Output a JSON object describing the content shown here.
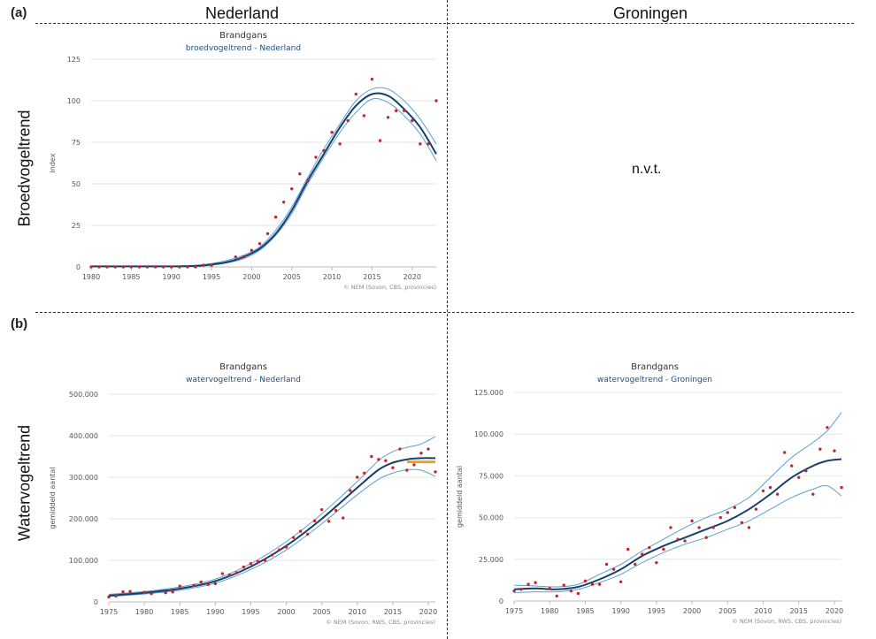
{
  "labels": {
    "panel_a": "(a)",
    "panel_b": "(b)",
    "col_nl": "Nederland",
    "col_gr": "Groningen",
    "row_breed": "Broedvogeltrend",
    "row_water": "Watervogeltrend",
    "not_applicable": "n.v.t."
  },
  "colors": {
    "trend": "#173f6a",
    "band": "#5a9fd4",
    "points": "#c0282d",
    "highlight": "#f0a020",
    "grid": "#e6e6e6",
    "subtitle": "#1f4d7a"
  },
  "chart_data": [
    {
      "id": "breed_nl",
      "type": "line",
      "title": "Brandgans",
      "subtitle": "broedvogeltrend - Nederland",
      "ylabel": "index",
      "source": "© NEM (Sovon, CBS, provincies)",
      "xlim": [
        1980,
        2023
      ],
      "ylim": [
        0,
        125
      ],
      "xticks": [
        "1980",
        "1985",
        "1990",
        "1995",
        "2000",
        "2005",
        "2010",
        "2015",
        "2020"
      ],
      "yticks": [
        "0",
        "25",
        "50",
        "75",
        "100",
        "125"
      ],
      "trend": [
        [
          1980,
          0.3
        ],
        [
          1985,
          0.3
        ],
        [
          1990,
          0.3
        ],
        [
          1993,
          0.6
        ],
        [
          1995,
          1.5
        ],
        [
          1997,
          3
        ],
        [
          1999,
          6
        ],
        [
          2001,
          11
        ],
        [
          2003,
          20
        ],
        [
          2005,
          34
        ],
        [
          2007,
          52
        ],
        [
          2009,
          68
        ],
        [
          2011,
          84
        ],
        [
          2013,
          97
        ],
        [
          2015,
          104
        ],
        [
          2017,
          103
        ],
        [
          2019,
          95
        ],
        [
          2021,
          84
        ],
        [
          2023,
          68
        ]
      ],
      "upper": [
        [
          1980,
          0.5
        ],
        [
          1990,
          0.5
        ],
        [
          1993,
          1
        ],
        [
          1995,
          2
        ],
        [
          1997,
          4
        ],
        [
          1999,
          7
        ],
        [
          2001,
          12
        ],
        [
          2003,
          22
        ],
        [
          2005,
          36
        ],
        [
          2007,
          54
        ],
        [
          2009,
          71
        ],
        [
          2011,
          86
        ],
        [
          2013,
          100
        ],
        [
          2015,
          107
        ],
        [
          2017,
          107
        ],
        [
          2019,
          100
        ],
        [
          2021,
          89
        ],
        [
          2023,
          74
        ]
      ],
      "lower": [
        [
          1980,
          0.1
        ],
        [
          1990,
          0.1
        ],
        [
          1993,
          0.3
        ],
        [
          1995,
          1
        ],
        [
          1997,
          2.5
        ],
        [
          1999,
          5
        ],
        [
          2001,
          10
        ],
        [
          2003,
          19
        ],
        [
          2005,
          32
        ],
        [
          2007,
          50
        ],
        [
          2009,
          66
        ],
        [
          2011,
          81
        ],
        [
          2013,
          93
        ],
        [
          2015,
          101
        ],
        [
          2017,
          99
        ],
        [
          2019,
          91
        ],
        [
          2021,
          80
        ],
        [
          2023,
          64
        ]
      ],
      "points": [
        [
          1980,
          0
        ],
        [
          1981,
          0
        ],
        [
          1982,
          0
        ],
        [
          1983,
          0
        ],
        [
          1984,
          0
        ],
        [
          1985,
          0
        ],
        [
          1986,
          0
        ],
        [
          1987,
          0
        ],
        [
          1988,
          0
        ],
        [
          1989,
          0
        ],
        [
          1990,
          0
        ],
        [
          1991,
          0
        ],
        [
          1992,
          0
        ],
        [
          1993,
          0
        ],
        [
          1994,
          1
        ],
        [
          1995,
          1
        ],
        [
          1998,
          6
        ],
        [
          1999,
          6
        ],
        [
          2000,
          10
        ],
        [
          2001,
          14
        ],
        [
          2002,
          20
        ],
        [
          2003,
          30
        ],
        [
          2004,
          39
        ],
        [
          2005,
          47
        ],
        [
          2006,
          56
        ],
        [
          2007,
          52
        ],
        [
          2008,
          66
        ],
        [
          2009,
          70
        ],
        [
          2010,
          81
        ],
        [
          2011,
          74
        ],
        [
          2012,
          88
        ],
        [
          2013,
          104
        ],
        [
          2014,
          91
        ],
        [
          2015,
          113
        ],
        [
          2016,
          76
        ],
        [
          2017,
          90
        ],
        [
          2018,
          94
        ],
        [
          2019,
          94
        ],
        [
          2020,
          88
        ],
        [
          2021,
          74
        ],
        [
          2022,
          74
        ],
        [
          2023,
          100
        ]
      ]
    },
    {
      "id": "water_nl",
      "type": "line",
      "title": "Brandgans",
      "subtitle": "watervogeltrend - Nederland",
      "ylabel": "gemiddeld aantal",
      "source": "© NEM (Sovon, RWS, CBS, provincies)",
      "xlim": [
        1975,
        2021
      ],
      "ylim": [
        0,
        500000
      ],
      "xticks": [
        "1975",
        "1980",
        "1985",
        "1990",
        "1995",
        "2000",
        "2005",
        "2010",
        "2015",
        "2020"
      ],
      "yticks": [
        "0",
        "100.000",
        "200.000",
        "300.000",
        "400.000",
        "500.000"
      ],
      "trend": [
        [
          1975,
          15000
        ],
        [
          1980,
          22000
        ],
        [
          1985,
          32000
        ],
        [
          1990,
          50000
        ],
        [
          1995,
          85000
        ],
        [
          2000,
          135000
        ],
        [
          2005,
          200000
        ],
        [
          2010,
          275000
        ],
        [
          2013,
          318000
        ],
        [
          2015,
          335000
        ],
        [
          2017,
          343000
        ],
        [
          2019,
          346000
        ],
        [
          2021,
          346000
        ]
      ],
      "upper": [
        [
          1975,
          18000
        ],
        [
          1980,
          25000
        ],
        [
          1985,
          36000
        ],
        [
          1990,
          55000
        ],
        [
          1995,
          92000
        ],
        [
          2000,
          145000
        ],
        [
          2005,
          212000
        ],
        [
          2010,
          290000
        ],
        [
          2013,
          340000
        ],
        [
          2015,
          362000
        ],
        [
          2017,
          372000
        ],
        [
          2019,
          380000
        ],
        [
          2021,
          398000
        ]
      ],
      "lower": [
        [
          1975,
          13000
        ],
        [
          1980,
          19000
        ],
        [
          1985,
          28000
        ],
        [
          1990,
          45000
        ],
        [
          1995,
          78000
        ],
        [
          2000,
          125000
        ],
        [
          2005,
          188000
        ],
        [
          2010,
          258000
        ],
        [
          2013,
          295000
        ],
        [
          2015,
          310000
        ],
        [
          2017,
          318000
        ],
        [
          2019,
          317000
        ],
        [
          2021,
          302000
        ]
      ],
      "highlight": [
        [
          2017,
          337000
        ],
        [
          2021,
          337000
        ]
      ],
      "points": [
        [
          1975,
          12000
        ],
        [
          1976,
          14000
        ],
        [
          1977,
          24000
        ],
        [
          1978,
          25000
        ],
        [
          1980,
          23000
        ],
        [
          1981,
          20000
        ],
        [
          1983,
          22000
        ],
        [
          1984,
          24000
        ],
        [
          1985,
          38000
        ],
        [
          1987,
          40000
        ],
        [
          1988,
          48000
        ],
        [
          1989,
          42000
        ],
        [
          1990,
          44000
        ],
        [
          1991,
          68000
        ],
        [
          1992,
          65000
        ],
        [
          1993,
          70000
        ],
        [
          1994,
          84000
        ],
        [
          1995,
          92000
        ],
        [
          1996,
          97000
        ],
        [
          1997,
          100000
        ],
        [
          1998,
          113000
        ],
        [
          1999,
          125000
        ],
        [
          2000,
          132000
        ],
        [
          2001,
          155000
        ],
        [
          2002,
          170000
        ],
        [
          2003,
          163000
        ],
        [
          2004,
          195000
        ],
        [
          2005,
          222000
        ],
        [
          2006,
          194000
        ],
        [
          2007,
          220000
        ],
        [
          2008,
          202000
        ],
        [
          2009,
          268000
        ],
        [
          2010,
          300000
        ],
        [
          2011,
          310000
        ],
        [
          2012,
          350000
        ],
        [
          2013,
          343000
        ],
        [
          2014,
          340000
        ],
        [
          2015,
          323000
        ],
        [
          2016,
          368000
        ],
        [
          2017,
          317000
        ],
        [
          2018,
          330000
        ],
        [
          2019,
          358000
        ],
        [
          2020,
          368000
        ],
        [
          2021,
          313000
        ]
      ]
    },
    {
      "id": "water_gr",
      "type": "line",
      "title": "Brandgans",
      "subtitle": "watervogeltrend - Groningen",
      "ylabel": "gemiddeld aantal",
      "source": "© NEM (Sovon, RWS, CBS, provincies)",
      "xlim": [
        1975,
        2021
      ],
      "ylim": [
        0,
        125000
      ],
      "xticks": [
        "1975",
        "1980",
        "1985",
        "1990",
        "1995",
        "2000",
        "2005",
        "2010",
        "2015",
        "2020"
      ],
      "yticks": [
        "0",
        "25.000",
        "50.000",
        "75.000",
        "100.000",
        "125.000"
      ],
      "trend": [
        [
          1975,
          7000
        ],
        [
          1978,
          7500
        ],
        [
          1981,
          7000
        ],
        [
          1984,
          8500
        ],
        [
          1987,
          13000
        ],
        [
          1990,
          19000
        ],
        [
          1993,
          27000
        ],
        [
          1996,
          33000
        ],
        [
          1999,
          38000
        ],
        [
          2002,
          43000
        ],
        [
          2005,
          48000
        ],
        [
          2008,
          55000
        ],
        [
          2011,
          64000
        ],
        [
          2014,
          74000
        ],
        [
          2017,
          81000
        ],
        [
          2019,
          84000
        ],
        [
          2021,
          85000
        ]
      ],
      "upper": [
        [
          1975,
          9500
        ],
        [
          1978,
          9000
        ],
        [
          1981,
          8500
        ],
        [
          1984,
          10000
        ],
        [
          1987,
          16000
        ],
        [
          1990,
          22000
        ],
        [
          1993,
          30000
        ],
        [
          1996,
          37000
        ],
        [
          1999,
          44000
        ],
        [
          2002,
          50000
        ],
        [
          2005,
          55000
        ],
        [
          2008,
          62000
        ],
        [
          2011,
          74000
        ],
        [
          2014,
          86000
        ],
        [
          2017,
          95000
        ],
        [
          2019,
          102000
        ],
        [
          2021,
          113000
        ]
      ],
      "lower": [
        [
          1975,
          5000
        ],
        [
          1978,
          5500
        ],
        [
          1981,
          5500
        ],
        [
          1984,
          7000
        ],
        [
          1987,
          11000
        ],
        [
          1990,
          16000
        ],
        [
          1993,
          23000
        ],
        [
          1996,
          29000
        ],
        [
          1999,
          34000
        ],
        [
          2002,
          38000
        ],
        [
          2005,
          43000
        ],
        [
          2008,
          48000
        ],
        [
          2011,
          55000
        ],
        [
          2014,
          62000
        ],
        [
          2017,
          67000
        ],
        [
          2019,
          69000
        ],
        [
          2021,
          63000
        ]
      ],
      "points": [
        [
          1975,
          6000
        ],
        [
          1976,
          7000
        ],
        [
          1977,
          10000
        ],
        [
          1978,
          11000
        ],
        [
          1980,
          7500
        ],
        [
          1981,
          3000
        ],
        [
          1982,
          9500
        ],
        [
          1983,
          6000
        ],
        [
          1984,
          4500
        ],
        [
          1985,
          12000
        ],
        [
          1986,
          10000
        ],
        [
          1987,
          10000
        ],
        [
          1988,
          22000
        ],
        [
          1989,
          19000
        ],
        [
          1990,
          11500
        ],
        [
          1991,
          31000
        ],
        [
          1992,
          22000
        ],
        [
          1993,
          28000
        ],
        [
          1994,
          32000
        ],
        [
          1995,
          23000
        ],
        [
          1996,
          31000
        ],
        [
          1997,
          44000
        ],
        [
          1998,
          37000
        ],
        [
          1999,
          36000
        ],
        [
          2000,
          48000
        ],
        [
          2001,
          44000
        ],
        [
          2002,
          38000
        ],
        [
          2003,
          44000
        ],
        [
          2004,
          50000
        ],
        [
          2005,
          53000
        ],
        [
          2006,
          56000
        ],
        [
          2007,
          47000
        ],
        [
          2008,
          44000
        ],
        [
          2009,
          55000
        ],
        [
          2010,
          66000
        ],
        [
          2011,
          68000
        ],
        [
          2012,
          64000
        ],
        [
          2013,
          89000
        ],
        [
          2014,
          81000
        ],
        [
          2015,
          74000
        ],
        [
          2016,
          78000
        ],
        [
          2017,
          64000
        ],
        [
          2018,
          91000
        ],
        [
          2019,
          104000
        ],
        [
          2020,
          90000
        ],
        [
          2021,
          68000
        ]
      ]
    }
  ]
}
